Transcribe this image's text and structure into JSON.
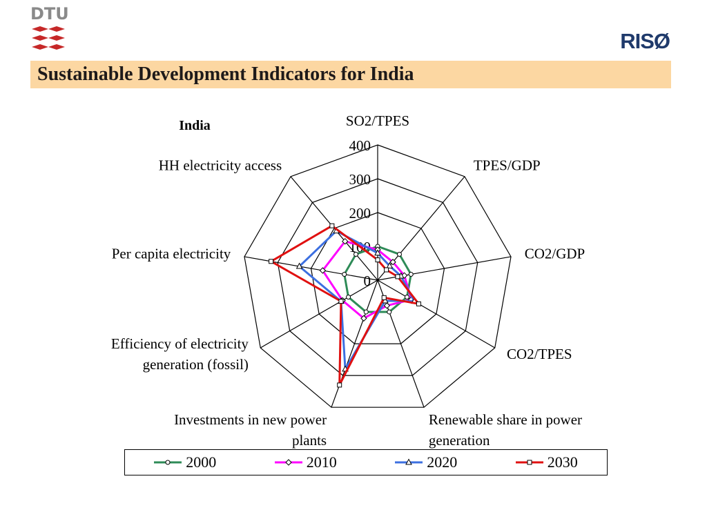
{
  "header": {
    "logo_left_text": "DTU",
    "logo_right_text": "RISØ",
    "title": "Sustainable Development Indicators for India"
  },
  "chart_data": {
    "type": "radar",
    "title": "India",
    "categories": [
      "SO2/TPES",
      "TPES/GDP",
      "CO2/GDP",
      "CO2/TPES",
      "Renewable share in power generation",
      "Investments in new power plants",
      "Efficiency of electricity generation (fossil)",
      "Per capita electricity",
      "HH electricity access"
    ],
    "category_lines": [
      [
        "SO2/TPES"
      ],
      [
        "TPES/GDP"
      ],
      [
        "CO2/GDP"
      ],
      [
        "CO2/TPES"
      ],
      [
        "Renewable share in power",
        "generation"
      ],
      [
        "Investments in new power",
        "plants"
      ],
      [
        "Efficiency of electricity",
        "generation (fossil)"
      ],
      [
        "Per capita electricity"
      ],
      [
        "HH electricity access"
      ]
    ],
    "rlim": [
      0,
      400
    ],
    "r_ticks": [
      "0",
      "100",
      "200",
      "300",
      "400"
    ],
    "grid": true,
    "legend_position": "bottom",
    "series": [
      {
        "name": "2000",
        "color": "#2e8b57",
        "marker": "circle",
        "values": [
          100,
          100,
          100,
          100,
          100,
          100,
          100,
          100,
          100
        ]
      },
      {
        "name": "2010",
        "color": "#ff00ff",
        "marker": "diamond",
        "values": [
          90,
          70,
          80,
          115,
          80,
          120,
          120,
          165,
          150
        ]
      },
      {
        "name": "2020",
        "color": "#3c6fe0",
        "marker": "triangle",
        "values": [
          80,
          55,
          70,
          125,
          65,
          280,
          125,
          235,
          190
        ]
      },
      {
        "name": "2030",
        "color": "#e01010",
        "marker": "square",
        "values": [
          60,
          40,
          60,
          140,
          55,
          330,
          125,
          320,
          210
        ]
      }
    ]
  }
}
